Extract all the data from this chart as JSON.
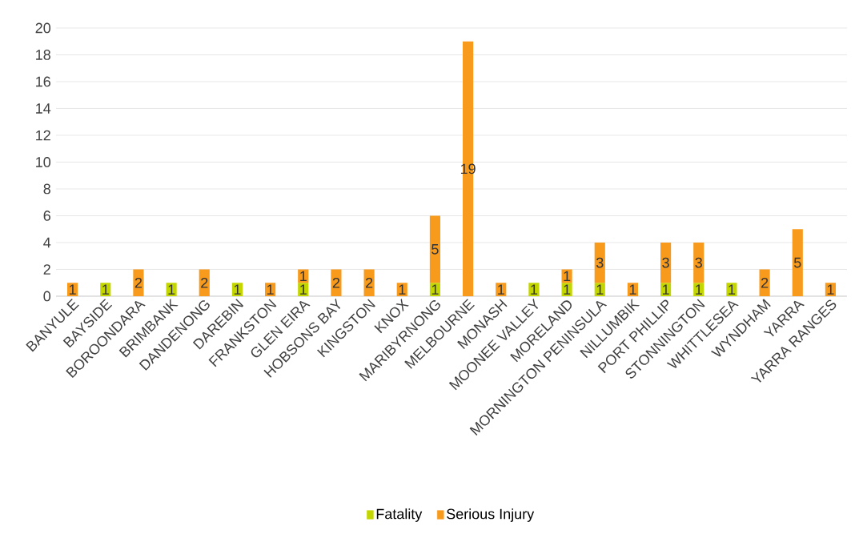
{
  "chart_data": {
    "type": "bar",
    "stacked": true,
    "categories": [
      "BANYULE",
      "BAYSIDE",
      "BOROONDARA",
      "BRIMBANK",
      "DANDENONG",
      "DAREBIN",
      "FRANKSTON",
      "GLEN EIRA",
      "HOBSONS BAY",
      "KINGSTON",
      "KNOX",
      "MARIBYRNONG",
      "MELBOURNE",
      "MONASH",
      "MOONEE VALLEY",
      "MORELAND",
      "MORNINGTON PENINSULA",
      "NILLUMBIK",
      "PORT PHILLIP",
      "STONNINGTON",
      "WHITTLESEA",
      "WYNDHAM",
      "YARRA",
      "YARRA RANGES"
    ],
    "series": [
      {
        "name": "Fatality",
        "color": "#c4d600",
        "values": [
          null,
          1,
          null,
          1,
          null,
          1,
          null,
          1,
          null,
          null,
          null,
          1,
          null,
          null,
          1,
          1,
          1,
          null,
          1,
          1,
          1,
          null,
          null,
          null
        ]
      },
      {
        "name": "Serious Injury",
        "color": "#f89b1c",
        "values": [
          1,
          null,
          2,
          null,
          2,
          null,
          1,
          1,
          2,
          2,
          1,
          5,
          19,
          1,
          null,
          1,
          3,
          1,
          3,
          3,
          null,
          2,
          5,
          1
        ]
      }
    ],
    "ylim": [
      0,
      20
    ],
    "yticks": [
      0,
      2,
      4,
      6,
      8,
      10,
      12,
      14,
      16,
      18,
      20
    ],
    "grid": "y",
    "legend": "bottom",
    "data_labels": true
  }
}
